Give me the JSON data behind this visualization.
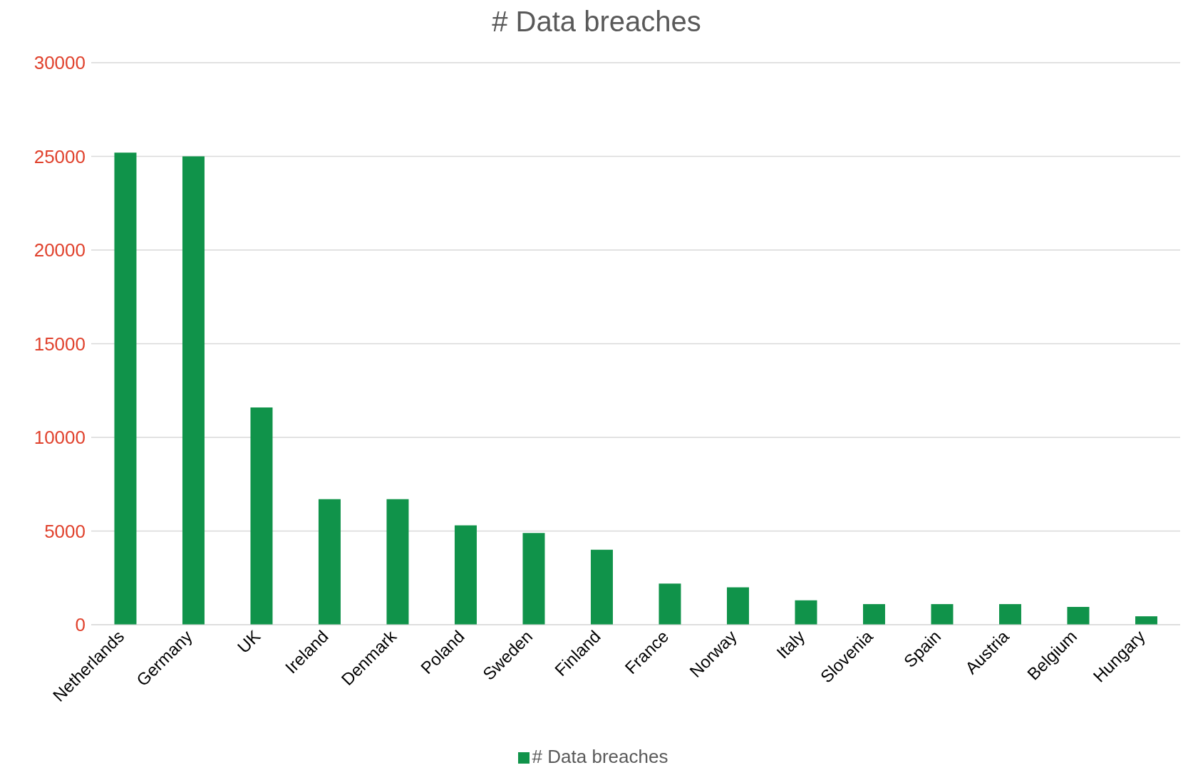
{
  "chart_data": {
    "type": "bar",
    "title": "# Data breaches",
    "categories": [
      "Netherlands",
      "Germany",
      "UK",
      "Ireland",
      "Denmark",
      "Poland",
      "Sweden",
      "Finland",
      "France",
      "Norway",
      "Italy",
      "Slovenia",
      "Spain",
      "Austria",
      "Belgium",
      "Hungary"
    ],
    "series": [
      {
        "name": "# Data breaches",
        "color": "#10934a",
        "values": [
          25200,
          25000,
          11600,
          6700,
          6700,
          5300,
          4900,
          4000,
          2200,
          2000,
          1300,
          1100,
          1100,
          1100,
          950,
          450
        ]
      }
    ],
    "ylim": [
      0,
      30000
    ],
    "yticks": [
      0,
      5000,
      10000,
      15000,
      20000,
      25000,
      30000
    ],
    "grid": "y",
    "legend": "bottom"
  }
}
